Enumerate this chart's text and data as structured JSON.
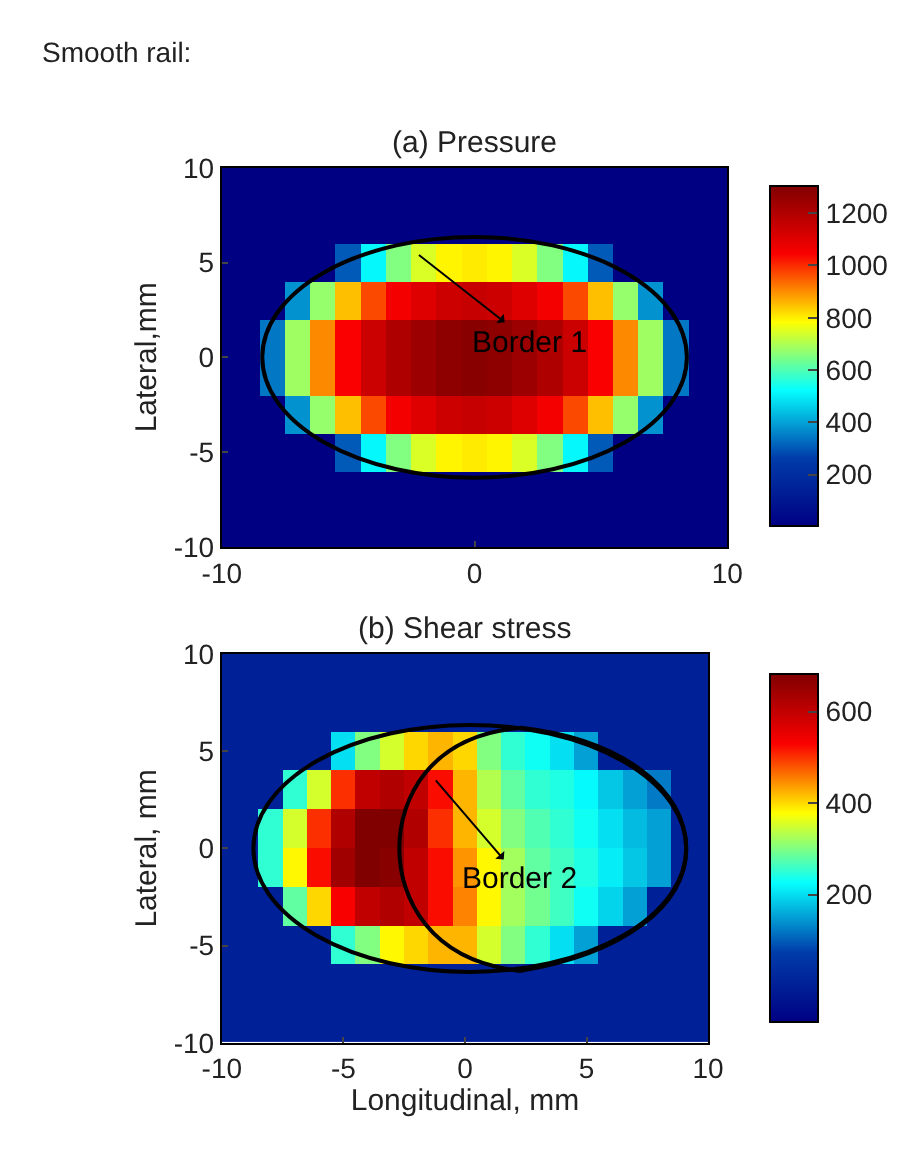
{
  "chart_data": [
    {
      "type": "heatmap",
      "title": "(a) Pressure",
      "ylabel": "Lateral,mm",
      "x": [
        -10,
        -9,
        -8,
        -7,
        -6,
        -5,
        -4,
        -3,
        -2,
        -1,
        0,
        1,
        2,
        3,
        4,
        5,
        6,
        7,
        8,
        9,
        10
      ],
      "y": [
        9,
        7,
        5,
        3,
        1,
        -1,
        -3,
        -5,
        -7,
        -9
      ],
      "cells": [
        [
          0,
          0,
          0,
          0,
          0,
          0,
          0,
          0,
          0,
          0,
          0,
          0,
          0,
          0,
          0,
          0,
          0,
          0,
          0,
          0,
          0
        ],
        [
          0,
          0,
          0,
          0,
          0,
          0,
          0,
          0,
          0,
          0,
          0,
          0,
          0,
          0,
          0,
          0,
          0,
          0,
          0,
          0,
          0
        ],
        [
          0,
          0,
          0,
          0,
          0,
          300,
          510,
          650,
          740,
          790,
          800,
          790,
          740,
          650,
          510,
          300,
          0,
          0,
          0,
          0,
          0
        ],
        [
          0,
          0,
          0,
          375,
          670,
          845,
          965,
          1050,
          1100,
          1135,
          1150,
          1135,
          1100,
          1050,
          965,
          845,
          670,
          375,
          0,
          0,
          0
        ],
        [
          0,
          0,
          340,
          680,
          900,
          1040,
          1140,
          1200,
          1240,
          1270,
          1280,
          1270,
          1240,
          1200,
          1140,
          1040,
          900,
          680,
          340,
          0,
          0
        ],
        [
          0,
          0,
          340,
          680,
          900,
          1040,
          1140,
          1200,
          1240,
          1270,
          1280,
          1270,
          1240,
          1200,
          1140,
          1040,
          900,
          680,
          340,
          0,
          0
        ],
        [
          0,
          0,
          0,
          375,
          670,
          845,
          965,
          1050,
          1100,
          1135,
          1150,
          1135,
          1100,
          1050,
          965,
          845,
          670,
          375,
          0,
          0,
          0
        ],
        [
          0,
          0,
          0,
          0,
          0,
          300,
          510,
          650,
          740,
          790,
          800,
          790,
          740,
          650,
          510,
          300,
          0,
          0,
          0,
          0,
          0
        ],
        [
          0,
          0,
          0,
          0,
          0,
          0,
          0,
          0,
          0,
          0,
          0,
          0,
          0,
          0,
          0,
          0,
          0,
          0,
          0,
          0,
          0
        ],
        [
          0,
          0,
          0,
          0,
          0,
          0,
          0,
          0,
          0,
          0,
          0,
          0,
          0,
          0,
          0,
          0,
          0,
          0,
          0,
          0,
          0
        ]
      ],
      "clim": [
        0,
        1300
      ],
      "cticks": [
        200,
        400,
        600,
        800,
        1000,
        1200
      ],
      "xlim": [
        -10,
        10
      ],
      "xticks": [
        -10,
        0,
        10
      ],
      "ylim": [
        -10,
        10
      ],
      "yticks": [
        -10,
        -5,
        0,
        5,
        10
      ],
      "annotations": [
        "Smooth rail:",
        "Border 1"
      ]
    },
    {
      "type": "heatmap",
      "title": "(b) Shear stress",
      "xlabel": "Longitudinal, mm",
      "ylabel": "Lateral, mm",
      "x": [
        -10,
        -9,
        -8,
        -7,
        -6,
        -5,
        -4,
        -3,
        -2,
        -1,
        0,
        1,
        2,
        3,
        4,
        5,
        6,
        7,
        8,
        9,
        10
      ],
      "y": [
        9,
        7,
        5,
        3,
        1,
        -1,
        -3,
        -5,
        -7,
        -9
      ],
      "cells": [
        [
          0,
          0,
          0,
          0,
          0,
          0,
          0,
          0,
          0,
          0,
          0,
          0,
          0,
          0,
          0,
          0,
          0,
          0,
          0,
          0,
          0
        ],
        [
          0,
          0,
          0,
          0,
          0,
          0,
          0,
          0,
          0,
          0,
          0,
          0,
          0,
          0,
          0,
          0,
          0,
          0,
          0,
          0,
          0
        ],
        [
          0,
          0,
          0,
          0,
          0,
          200,
          300,
          350,
          400,
          420,
          400,
          300,
          250,
          230,
          200,
          150,
          0,
          0,
          0,
          0,
          0
        ],
        [
          0,
          0,
          0,
          250,
          350,
          500,
          600,
          620,
          600,
          520,
          420,
          330,
          280,
          250,
          240,
          220,
          180,
          150,
          120,
          0,
          0
        ],
        [
          0,
          0,
          250,
          350,
          500,
          620,
          680,
          680,
          620,
          500,
          420,
          350,
          300,
          270,
          250,
          230,
          200,
          170,
          150,
          0,
          0
        ],
        [
          0,
          0,
          250,
          380,
          520,
          640,
          680,
          670,
          600,
          520,
          440,
          380,
          320,
          280,
          260,
          240,
          210,
          180,
          150,
          0,
          0
        ],
        [
          0,
          0,
          0,
          280,
          400,
          530,
          600,
          620,
          600,
          520,
          450,
          380,
          320,
          290,
          260,
          230,
          190,
          150,
          0,
          0,
          0
        ],
        [
          0,
          0,
          0,
          0,
          0,
          250,
          300,
          380,
          400,
          420,
          420,
          350,
          300,
          250,
          200,
          150,
          0,
          0,
          0,
          0,
          0
        ],
        [
          0,
          0,
          0,
          0,
          0,
          0,
          0,
          0,
          0,
          0,
          0,
          0,
          0,
          0,
          0,
          0,
          0,
          0,
          0,
          0,
          0
        ],
        [
          0,
          0,
          0,
          0,
          0,
          0,
          0,
          0,
          0,
          0,
          0,
          0,
          0,
          0,
          0,
          0,
          0,
          0,
          0,
          0,
          0
        ]
      ],
      "clim": [
        -80,
        680
      ],
      "cticks": [
        200,
        400,
        600
      ],
      "xlim": [
        -10,
        10
      ],
      "xticks": [
        -10,
        -5,
        0,
        5,
        10
      ],
      "ylim": [
        -10,
        10
      ],
      "yticks": [
        -10,
        -5,
        0,
        5,
        10
      ],
      "annotations": [
        "Border 2"
      ]
    }
  ]
}
